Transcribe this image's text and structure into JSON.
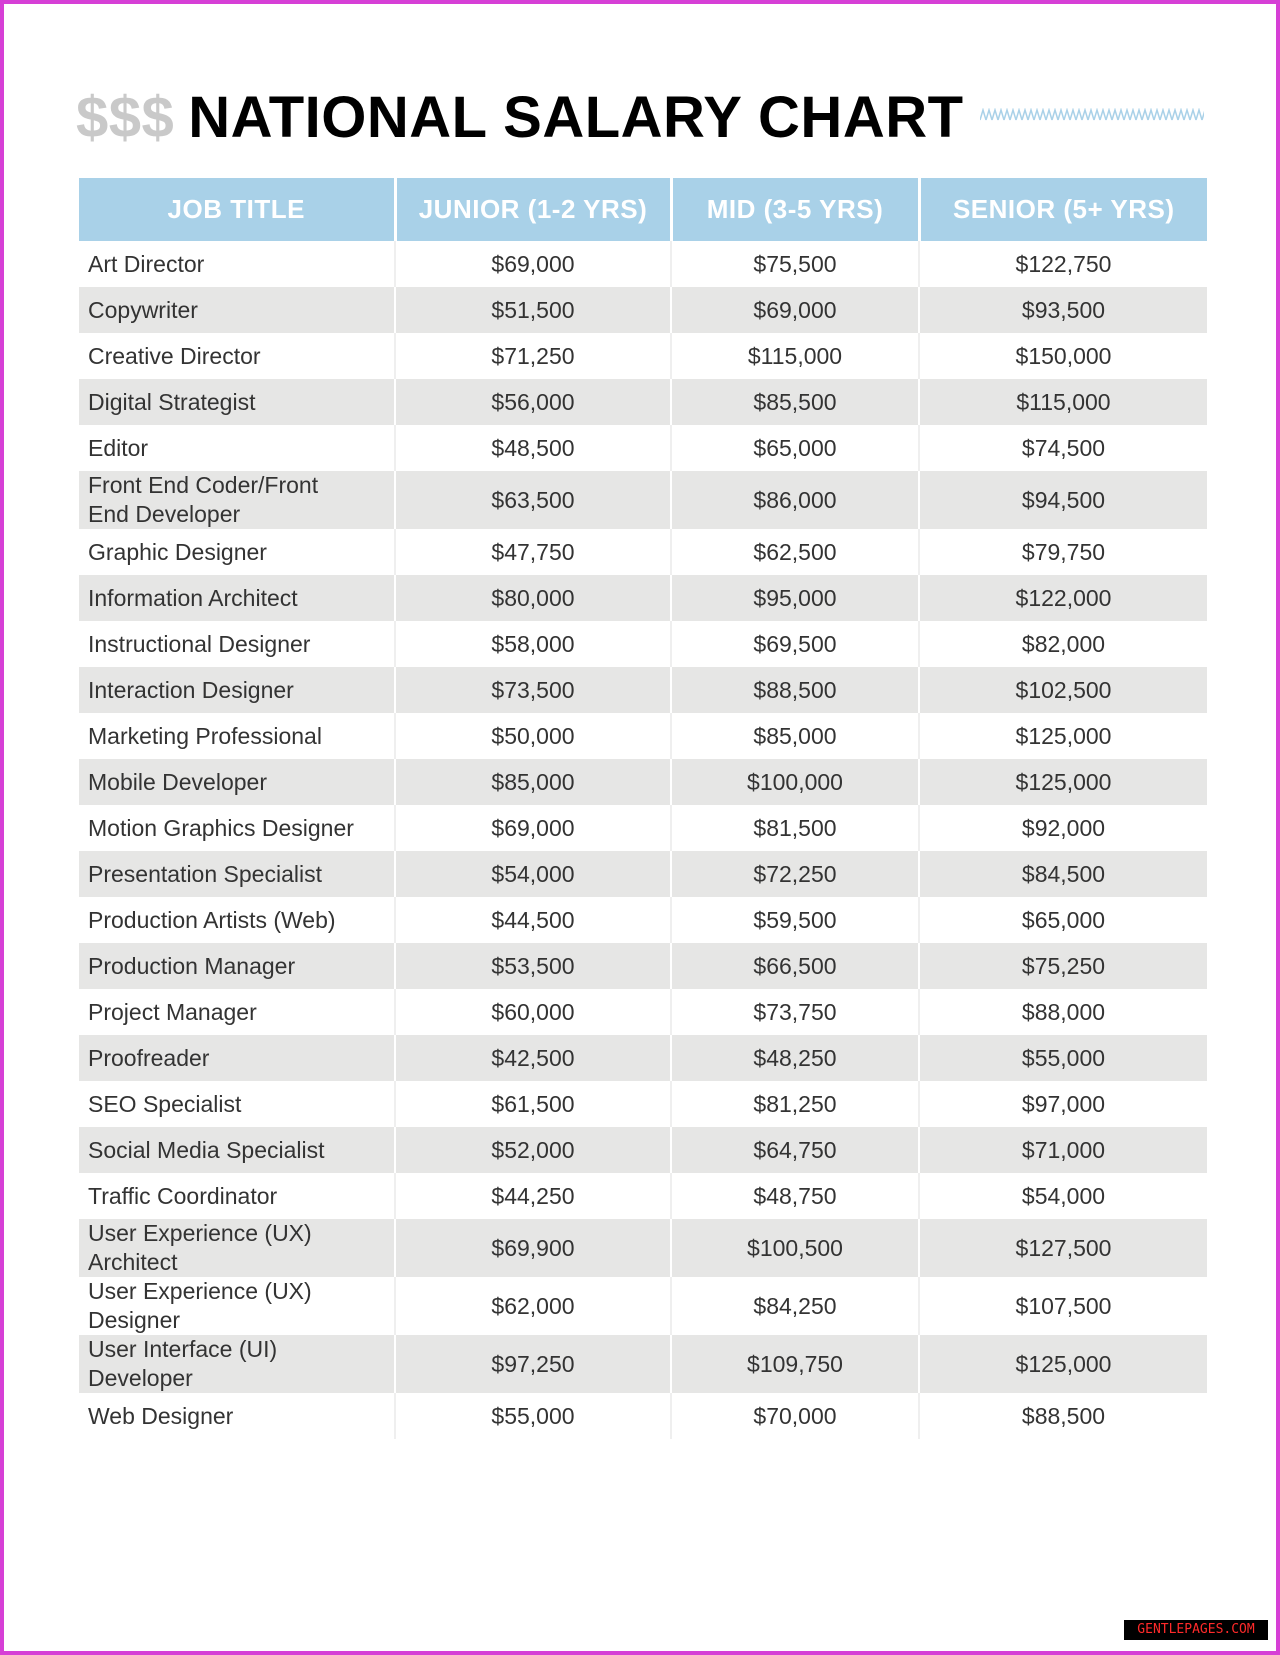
{
  "header": {
    "prefix": "$$$",
    "title": "NATIONAL SALARY CHART"
  },
  "table": {
    "columns": [
      "JOB TITLE",
      "JUNIOR (1-2 YRS)",
      "MID (3-5 YRS)",
      "SENIOR (5+ YRS)"
    ],
    "rows": [
      [
        "Art Director",
        "$69,000",
        "$75,500",
        "$122,750"
      ],
      [
        "Copywriter",
        "$51,500",
        "$69,000",
        "$93,500"
      ],
      [
        "Creative Director",
        "$71,250",
        "$115,000",
        "$150,000"
      ],
      [
        "Digital Strategist",
        "$56,000",
        "$85,500",
        "$115,000"
      ],
      [
        "Editor",
        "$48,500",
        "$65,000",
        "$74,500"
      ],
      [
        "Front End Coder/Front End Developer",
        "$63,500",
        "$86,000",
        "$94,500"
      ],
      [
        "Graphic Designer",
        "$47,750",
        "$62,500",
        "$79,750"
      ],
      [
        "Information Architect",
        "$80,000",
        "$95,000",
        "$122,000"
      ],
      [
        "Instructional Designer",
        "$58,000",
        "$69,500",
        "$82,000"
      ],
      [
        "Interaction Designer",
        "$73,500",
        "$88,500",
        "$102,500"
      ],
      [
        "Marketing Professional",
        "$50,000",
        "$85,000",
        "$125,000"
      ],
      [
        "Mobile Developer",
        "$85,000",
        "$100,000",
        "$125,000"
      ],
      [
        "Motion Graphics Designer",
        "$69,000",
        "$81,500",
        "$92,000"
      ],
      [
        "Presentation Specialist",
        "$54,000",
        "$72,250",
        "$84,500"
      ],
      [
        "Production Artists (Web)",
        "$44,500",
        "$59,500",
        "$65,000"
      ],
      [
        "Production Manager",
        "$53,500",
        "$66,500",
        "$75,250"
      ],
      [
        "Project Manager",
        "$60,000",
        "$73,750",
        "$88,000"
      ],
      [
        "Proofreader",
        "$42,500",
        "$48,250",
        "$55,000"
      ],
      [
        "SEO Specialist",
        "$61,500",
        "$81,250",
        "$97,000"
      ],
      [
        "Social Media Specialist",
        "$52,000",
        "$64,750",
        "$71,000"
      ],
      [
        "Traffic Coordinator",
        "$44,250",
        "$48,750",
        "$54,000"
      ],
      [
        "User Experience (UX) Architect",
        "$69,900",
        "$100,500",
        "$127,500"
      ],
      [
        "User Experience (UX) Designer",
        "$62,000",
        "$84,250",
        "$107,500"
      ],
      [
        "User Interface (UI) Developer",
        "$97,250",
        "$109,750",
        "$125,000"
      ],
      [
        "Web Designer",
        "$55,000",
        "$70,000",
        "$88,500"
      ]
    ]
  },
  "watermark": "GENTLEPAGES.COM"
}
